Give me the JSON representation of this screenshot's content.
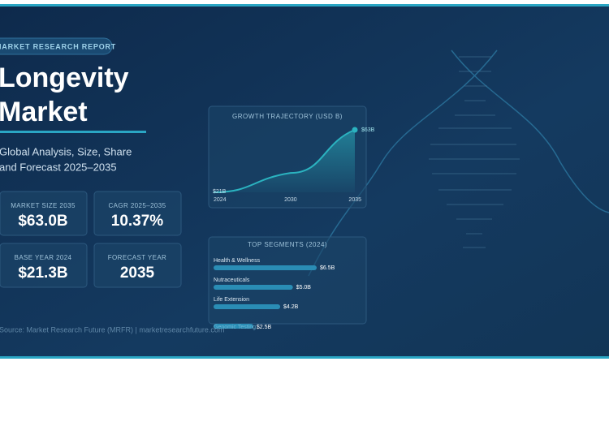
{
  "header": {
    "badge": "MARKET RESEARCH REPORT",
    "title_lines": [
      "Longevity",
      "Market"
    ],
    "subtitle_lines": [
      "Global Analysis, Size, Share",
      "and Forecast 2025–2035"
    ]
  },
  "stats": [
    {
      "label": "MARKET SIZE 2035",
      "value": "$63.0B"
    },
    {
      "label": "CAGR 2025–2035",
      "value": "10.37%"
    },
    {
      "label": "BASE YEAR 2024",
      "value": "$21.3B"
    },
    {
      "label": "FORECAST YEAR",
      "value": "2035"
    }
  ],
  "growth": {
    "type": "area",
    "title": "GROWTH TRAJECTORY (USD B)",
    "x": [
      2024,
      2030,
      2035
    ],
    "values": [
      21,
      34,
      63
    ],
    "value_labels": [
      "$21B",
      null,
      "$63B"
    ],
    "xticks": [
      2024,
      2030,
      2035
    ],
    "color": "#2bb3c0"
  },
  "segments": {
    "type": "bar",
    "title": "TOP SEGMENTS (2024)",
    "categories": [
      "Health & Wellness",
      "Nutraceuticals",
      "Life Extension",
      "Genomic Testing"
    ],
    "values": [
      6.5,
      5.0,
      4.2,
      2.5
    ],
    "value_labels": [
      "$6.5B",
      "$5.0B",
      "$4.2B",
      "$2.5B"
    ],
    "color": "#2a8db5"
  },
  "source": "Source: Market Research Future (MRFR) | marketresearchfuture.com"
}
